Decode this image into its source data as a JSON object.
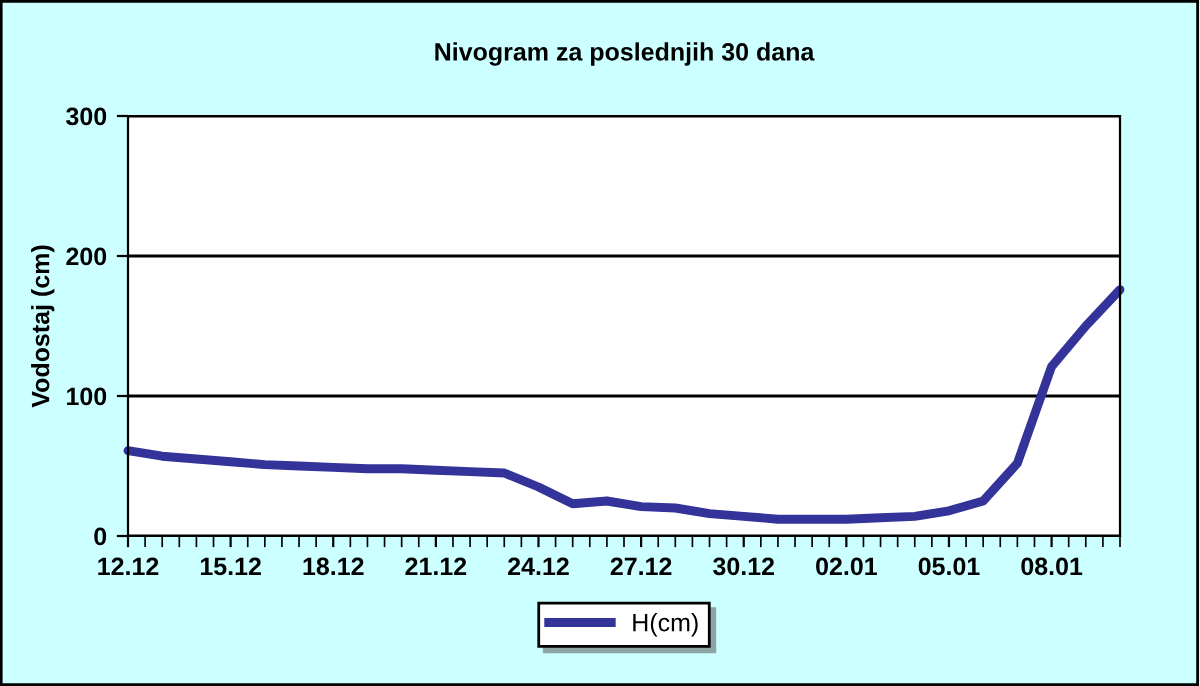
{
  "chart_data": {
    "type": "line",
    "title": "Nivogram za poslednjih 30 dana",
    "ylabel": "Vodostaj (cm)",
    "categories": [
      "12.12",
      null,
      null,
      "15.12",
      null,
      null,
      "18.12",
      null,
      null,
      "21.12",
      null,
      null,
      "24.12",
      null,
      null,
      "27.12",
      null,
      null,
      "30.12",
      null,
      null,
      "02.01",
      null,
      null,
      "05.01",
      null,
      null,
      "08.01",
      null,
      null
    ],
    "series": [
      {
        "name": "H(cm)",
        "color": "#333399",
        "values": [
          61,
          57,
          55,
          53,
          51,
          50,
          49,
          48,
          48,
          47,
          46,
          45,
          35,
          23,
          25,
          21,
          20,
          16,
          14,
          12,
          12,
          12,
          13,
          14,
          18,
          25,
          52,
          121,
          150,
          176
        ]
      }
    ],
    "ylim": [
      0,
      300
    ],
    "yticks": [
      0,
      100,
      200,
      300
    ],
    "grid": "y",
    "legend": "bottom",
    "marker": "none",
    "line_style": "solid"
  }
}
